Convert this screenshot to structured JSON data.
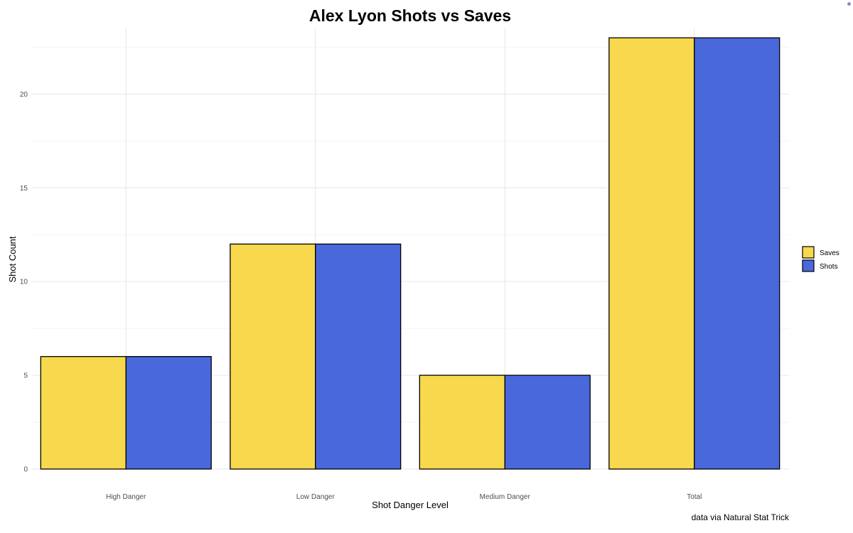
{
  "chart_data": {
    "type": "bar",
    "title": "Alex Lyon Shots vs Saves",
    "xlabel": "Shot Danger Level",
    "ylabel": "Shot Count",
    "caption": "data via Natural Stat Trick",
    "categories": [
      "High Danger",
      "Low Danger",
      "Medium Danger",
      "Total"
    ],
    "series": [
      {
        "name": "Saves",
        "color": "#F8D84C",
        "values": [
          6,
          12,
          5,
          23
        ]
      },
      {
        "name": "Shots",
        "color": "#4868DC",
        "values": [
          6,
          12,
          5,
          23
        ]
      }
    ],
    "y_ticks": [
      0,
      5,
      10,
      15,
      20
    ],
    "ylim": [
      0,
      23.5
    ],
    "grid": true,
    "legend_position": "right"
  }
}
